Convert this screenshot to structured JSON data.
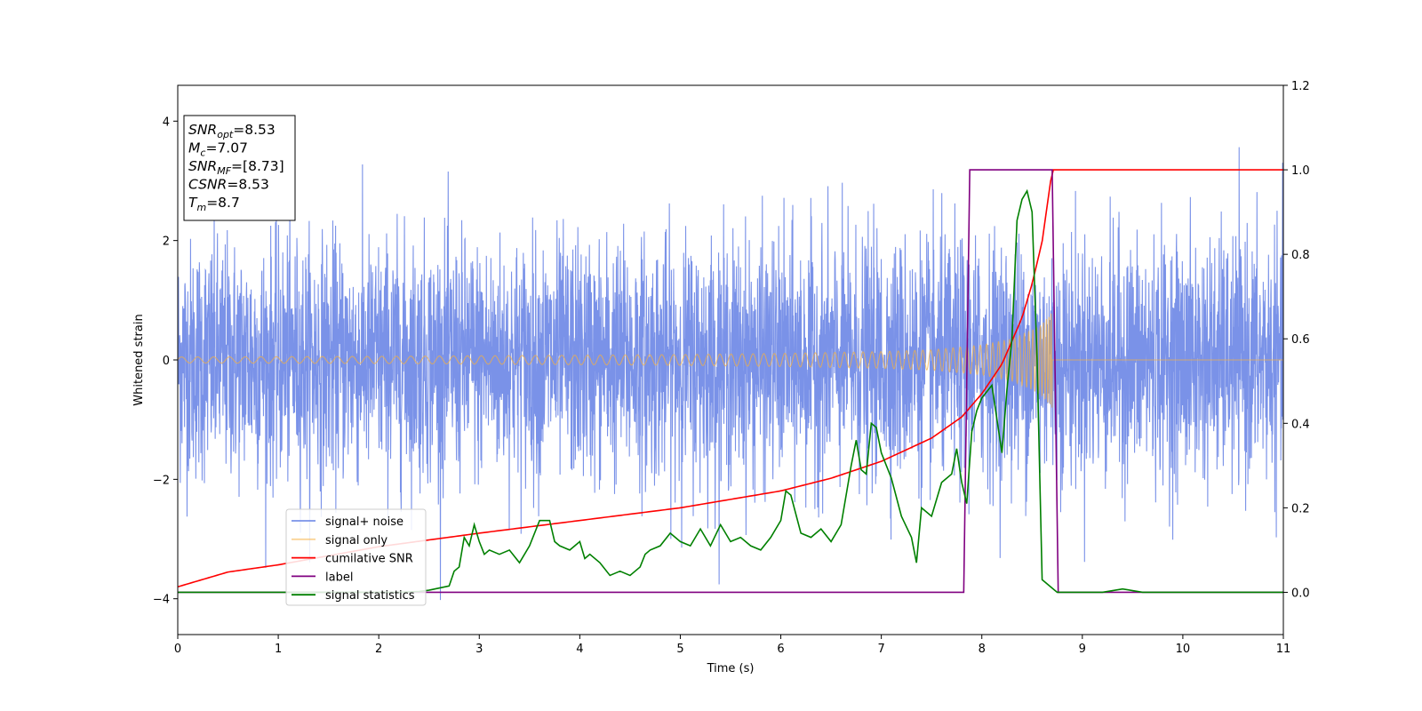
{
  "chart_data": {
    "type": "line",
    "xlabel": "Time (s)",
    "ylabel": "Whitened strain",
    "xlim": [
      0,
      11
    ],
    "ylim": [
      -4.6,
      4.6
    ],
    "y2lim": [
      -0.1,
      1.2
    ],
    "grid": false,
    "legend_position": "lower-left",
    "x_ticks": [
      "0",
      "1",
      "2",
      "3",
      "4",
      "5",
      "6",
      "7",
      "8",
      "9",
      "10",
      "11"
    ],
    "y_ticks": [
      "4",
      "2",
      "0",
      "−2",
      "−4"
    ],
    "y_tick_values": [
      4,
      2,
      0,
      -2,
      -4
    ],
    "y2_ticks": [
      "1.2",
      "1.0",
      "0.8",
      "0.6",
      "0.4",
      "0.2",
      "0.0"
    ],
    "y2_tick_values": [
      1.2,
      1.0,
      0.8,
      0.6,
      0.4,
      0.2,
      0.0
    ],
    "annotation": {
      "lines": [
        {
          "main": "SNR",
          "sub": "opt",
          "rest": "=8.53"
        },
        {
          "main": "M",
          "sub": "c",
          "rest": "=7.07"
        },
        {
          "main": "SNR",
          "sub": "MF",
          "rest": "=[8.73]"
        },
        {
          "main": "CSNR",
          "sub": "",
          "rest": "=8.53"
        },
        {
          "main": "T",
          "sub": "m",
          "rest": "=8.7"
        }
      ]
    },
    "series": [
      {
        "name": "signal+ noise",
        "color": "#6b86e6",
        "axis": "left",
        "kind": "noise",
        "amplitude_std": 1.0,
        "x_range": [
          0,
          11
        ]
      },
      {
        "name": "signal only",
        "color": "#f5b041",
        "axis": "left",
        "kind": "chirp",
        "merger_time": 8.7,
        "envelope": {
          "x": [
            0,
            2,
            4,
            5,
            6,
            7,
            7.5,
            8,
            8.3,
            8.5,
            8.6,
            8.7
          ],
          "y": [
            0.05,
            0.06,
            0.08,
            0.09,
            0.11,
            0.14,
            0.17,
            0.25,
            0.35,
            0.5,
            0.6,
            0.8
          ]
        }
      },
      {
        "name": "cumilative SNR",
        "color": "#ff0000",
        "axis": "right",
        "x": [
          0,
          0.5,
          1,
          2,
          3,
          4,
          5,
          6,
          6.5,
          7,
          7.5,
          7.8,
          8,
          8.2,
          8.4,
          8.5,
          8.6,
          8.7,
          11
        ],
        "y": [
          0.013,
          0.048,
          0.065,
          0.108,
          0.14,
          0.17,
          0.2,
          0.24,
          0.27,
          0.31,
          0.365,
          0.415,
          0.47,
          0.54,
          0.65,
          0.73,
          0.83,
          1.0,
          1.0
        ]
      },
      {
        "name": "label",
        "color": "#800080",
        "axis": "right",
        "x": [
          0,
          7.82,
          7.88,
          8.7,
          8.76,
          11
        ],
        "y": [
          0,
          0,
          1,
          1,
          0,
          0
        ]
      },
      {
        "name": "signal statistics",
        "color": "#008000",
        "axis": "right",
        "x": [
          0,
          2.2,
          2.4,
          2.5,
          2.6,
          2.7,
          2.75,
          2.8,
          2.85,
          2.9,
          2.95,
          3.0,
          3.05,
          3.1,
          3.2,
          3.3,
          3.4,
          3.5,
          3.6,
          3.7,
          3.75,
          3.8,
          3.9,
          4.0,
          4.05,
          4.1,
          4.2,
          4.3,
          4.4,
          4.5,
          4.6,
          4.65,
          4.7,
          4.8,
          4.9,
          5.0,
          5.1,
          5.2,
          5.3,
          5.4,
          5.5,
          5.6,
          5.7,
          5.8,
          5.9,
          6.0,
          6.05,
          6.1,
          6.2,
          6.3,
          6.4,
          6.5,
          6.6,
          6.7,
          6.75,
          6.8,
          6.85,
          6.9,
          6.95,
          7.0,
          7.1,
          7.2,
          7.3,
          7.35,
          7.4,
          7.5,
          7.6,
          7.7,
          7.75,
          7.8,
          7.85,
          7.9,
          7.95,
          8.0,
          8.1,
          8.2,
          8.25,
          8.3,
          8.35,
          8.4,
          8.45,
          8.5,
          8.55,
          8.6,
          8.7,
          8.75,
          8.85,
          9.0,
          9.2,
          9.4,
          9.6,
          10,
          11
        ],
        "y": [
          0.0,
          0.0,
          0.002,
          0.005,
          0.01,
          0.015,
          0.05,
          0.06,
          0.13,
          0.11,
          0.16,
          0.12,
          0.09,
          0.1,
          0.09,
          0.1,
          0.07,
          0.11,
          0.17,
          0.17,
          0.12,
          0.11,
          0.1,
          0.12,
          0.08,
          0.09,
          0.07,
          0.04,
          0.05,
          0.04,
          0.06,
          0.09,
          0.1,
          0.11,
          0.14,
          0.12,
          0.11,
          0.15,
          0.11,
          0.16,
          0.12,
          0.13,
          0.11,
          0.1,
          0.13,
          0.17,
          0.24,
          0.23,
          0.14,
          0.13,
          0.15,
          0.12,
          0.16,
          0.3,
          0.36,
          0.29,
          0.28,
          0.4,
          0.39,
          0.33,
          0.27,
          0.18,
          0.13,
          0.07,
          0.2,
          0.18,
          0.26,
          0.28,
          0.34,
          0.26,
          0.21,
          0.38,
          0.43,
          0.46,
          0.49,
          0.33,
          0.48,
          0.6,
          0.88,
          0.93,
          0.95,
          0.9,
          0.55,
          0.03,
          0.01,
          0.0,
          0.0,
          0.0,
          0.0,
          0.008,
          0.0,
          0.0,
          0.0
        ]
      }
    ]
  }
}
